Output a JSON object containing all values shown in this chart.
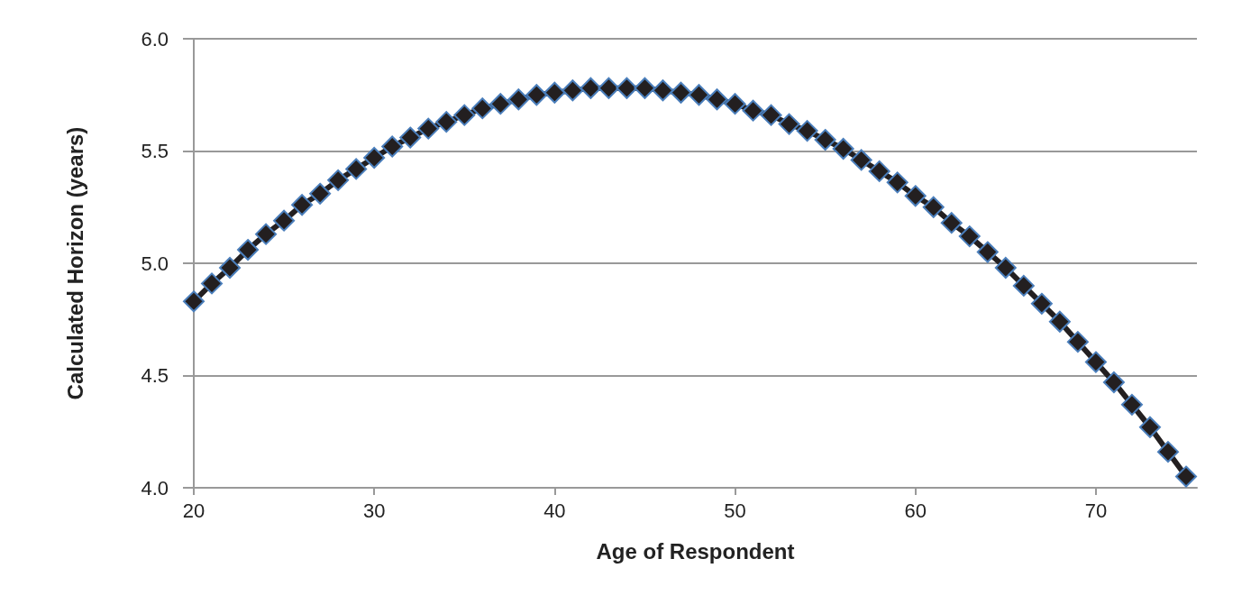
{
  "chart_data": {
    "type": "line",
    "xlabel": "Age of Respondent",
    "ylabel": "Calculated Horizon (years)",
    "x": [
      20,
      21,
      22,
      23,
      24,
      25,
      26,
      27,
      28,
      29,
      30,
      31,
      32,
      33,
      34,
      35,
      36,
      37,
      38,
      39,
      40,
      41,
      42,
      43,
      44,
      45,
      46,
      47,
      48,
      49,
      50,
      51,
      52,
      53,
      54,
      55,
      56,
      57,
      58,
      59,
      60,
      61,
      62,
      63,
      64,
      65,
      66,
      67,
      68,
      69,
      70,
      71,
      72,
      73,
      74,
      75
    ],
    "series": [
      {
        "color": "#231f20",
        "values": [
          4.83,
          4.91,
          4.98,
          5.06,
          5.13,
          5.19,
          5.26,
          5.31,
          5.37,
          5.42,
          5.47,
          5.52,
          5.56,
          5.6,
          5.63,
          5.66,
          5.69,
          5.71,
          5.73,
          5.75,
          5.76,
          5.77,
          5.78,
          5.78,
          5.78,
          5.78,
          5.77,
          5.76,
          5.75,
          5.73,
          5.71,
          5.68,
          5.66,
          5.62,
          5.59,
          5.55,
          5.51,
          5.46,
          5.41,
          5.36,
          5.3,
          5.25,
          5.18,
          5.12,
          5.05,
          4.98,
          4.9,
          4.82,
          4.74,
          4.65,
          4.56,
          4.47,
          4.37,
          4.27,
          4.16,
          4.05
        ]
      }
    ],
    "xlim": [
      20,
      75.6
    ],
    "xticks": [
      20,
      30,
      40,
      50,
      60,
      70
    ],
    "ylim": [
      4.0,
      6.0
    ],
    "yticks": [
      {
        "value": 4.0,
        "label": "4.0"
      },
      {
        "value": 4.5,
        "label": "4.5"
      },
      {
        "value": 5.0,
        "label": "5.0"
      },
      {
        "value": 5.5,
        "label": "5.5"
      },
      {
        "value": 6.0,
        "label": "6.0"
      }
    ],
    "grid": "y",
    "marker": "diamond",
    "line_style": "solid"
  }
}
